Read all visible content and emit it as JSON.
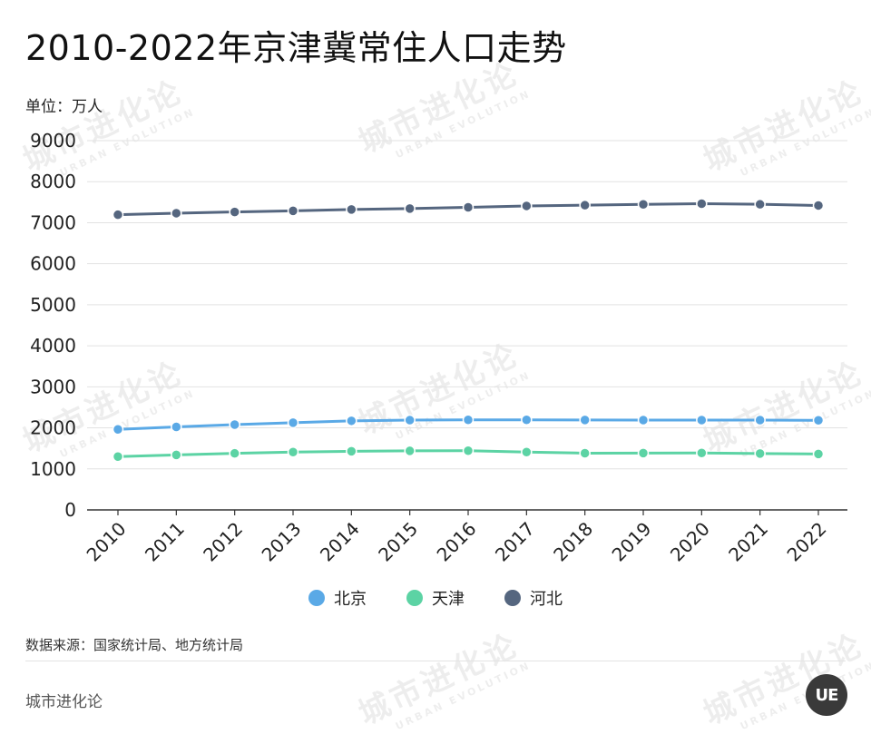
{
  "title": "2010-2022年京津冀常住人口走势",
  "unit_label": "单位：万人",
  "source_note": "数据来源：国家统计局、地方统计局",
  "brand": "城市进化论",
  "logo_text": "UE",
  "watermark": {
    "cn": "城市进化论",
    "en": "URBAN EVOLUTION"
  },
  "colors": {
    "北京": "#5aa9e6",
    "天津": "#5cd3a4",
    "河北": "#55667f",
    "grid": "#e2e2e2",
    "axis": "#333333"
  },
  "chart_data": {
    "type": "line",
    "title": "2010-2022年京津冀常住人口走势",
    "xlabel": "",
    "ylabel": "单位：万人",
    "ylim": [
      0,
      9000
    ],
    "yticks": [
      0,
      1000,
      2000,
      3000,
      4000,
      5000,
      6000,
      7000,
      8000,
      9000
    ],
    "categories": [
      "2010",
      "2011",
      "2012",
      "2013",
      "2014",
      "2015",
      "2016",
      "2017",
      "2018",
      "2019",
      "2020",
      "2021",
      "2022"
    ],
    "series": [
      {
        "name": "北京",
        "values": [
          1962,
          2024,
          2078,
          2125,
          2171,
          2188,
          2195,
          2194,
          2192,
          2190,
          2189,
          2189,
          2184
        ]
      },
      {
        "name": "天津",
        "values": [
          1299,
          1341,
          1378,
          1410,
          1429,
          1439,
          1443,
          1410,
          1383,
          1385,
          1387,
          1373,
          1363
        ]
      },
      {
        "name": "河北",
        "values": [
          7194,
          7232,
          7262,
          7288,
          7323,
          7345,
          7375,
          7409,
          7426,
          7447,
          7464,
          7448,
          7420
        ]
      }
    ],
    "legend": [
      "北京",
      "天津",
      "河北"
    ],
    "legend_position": "bottom-center",
    "grid": true
  }
}
